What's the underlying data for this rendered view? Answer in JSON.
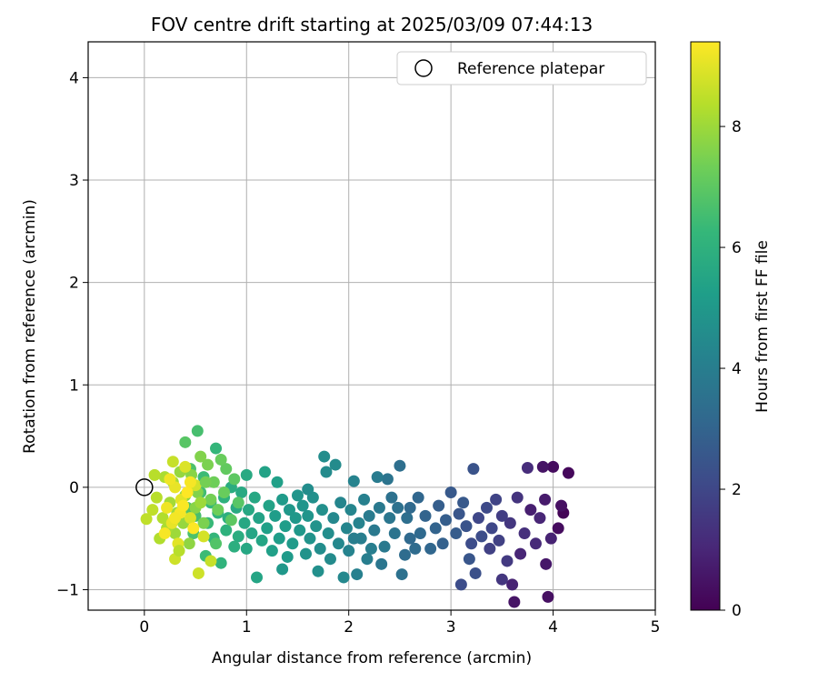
{
  "chart_data": {
    "type": "scatter",
    "title": "FOV centre drift starting at 2025/03/09 07:44:13",
    "xlabel": "Angular distance from reference (arcmin)",
    "ylabel": "Rotation from reference (arcmin)",
    "xlim": [
      -0.55,
      5.0
    ],
    "ylim": [
      -1.2,
      4.35
    ],
    "xticks": [
      0,
      1,
      2,
      3,
      4,
      5
    ],
    "yticks": [
      -1,
      0,
      1,
      2,
      3,
      4
    ],
    "grid": true,
    "legend": {
      "position": "top-right",
      "entries": [
        "Reference platepar"
      ]
    },
    "colorbar": {
      "label": "Hours from first FF file",
      "range": [
        0,
        9.4
      ],
      "ticks": [
        0,
        2,
        4,
        6,
        8
      ],
      "colormap": "viridis"
    },
    "reference_point": {
      "x": 0,
      "y": 0
    },
    "points": [
      [
        4.1,
        -0.25,
        0.1
      ],
      [
        4.0,
        0.2,
        0.3
      ],
      [
        3.9,
        0.2,
        0.5
      ],
      [
        4.15,
        0.14,
        0.2
      ],
      [
        3.95,
        -1.07,
        0.4
      ],
      [
        3.93,
        -0.75,
        0.6
      ],
      [
        4.05,
        -0.4,
        0.3
      ],
      [
        3.92,
        -0.12,
        0.7
      ],
      [
        3.98,
        -0.5,
        0.9
      ],
      [
        4.08,
        -0.18,
        0.4
      ],
      [
        3.87,
        -0.3,
        1.0
      ],
      [
        3.83,
        -0.55,
        1.1
      ],
      [
        3.78,
        -0.22,
        0.8
      ],
      [
        3.75,
        0.19,
        1.2
      ],
      [
        3.72,
        -0.45,
        1.3
      ],
      [
        3.68,
        -0.65,
        1.0
      ],
      [
        3.62,
        -1.12,
        0.5
      ],
      [
        3.6,
        -0.95,
        0.9
      ],
      [
        3.65,
        -0.1,
        1.4
      ],
      [
        3.58,
        -0.35,
        1.5
      ],
      [
        3.55,
        -0.72,
        1.6
      ],
      [
        3.5,
        -0.28,
        1.7
      ],
      [
        3.47,
        -0.52,
        1.8
      ],
      [
        3.44,
        -0.12,
        1.9
      ],
      [
        3.4,
        -0.4,
        2.0
      ],
      [
        3.38,
        -0.6,
        1.8
      ],
      [
        3.35,
        -0.2,
        2.1
      ],
      [
        3.3,
        -0.48,
        2.2
      ],
      [
        3.27,
        -0.3,
        2.0
      ],
      [
        3.24,
        -0.84,
        2.3
      ],
      [
        3.22,
        0.18,
        2.4
      ],
      [
        3.2,
        -0.55,
        2.2
      ],
      [
        3.18,
        -0.7,
        2.5
      ],
      [
        3.15,
        -0.38,
        2.4
      ],
      [
        3.12,
        -0.15,
        2.6
      ],
      [
        3.08,
        -0.26,
        2.5
      ],
      [
        3.05,
        -0.45,
        2.7
      ],
      [
        3.0,
        -0.05,
        2.6
      ],
      [
        2.95,
        -0.32,
        2.8
      ],
      [
        2.92,
        -0.55,
        2.9
      ],
      [
        2.88,
        -0.18,
        2.8
      ],
      [
        2.85,
        -0.4,
        3.0
      ],
      [
        2.8,
        -0.6,
        3.1
      ],
      [
        2.75,
        -0.28,
        3.0
      ],
      [
        2.7,
        -0.45,
        3.2
      ],
      [
        2.68,
        -0.1,
        3.1
      ],
      [
        2.65,
        -0.6,
        3.3
      ],
      [
        2.6,
        -0.5,
        3.2
      ],
      [
        2.57,
        -0.3,
        3.4
      ],
      [
        2.55,
        -0.66,
        3.3
      ],
      [
        2.52,
        -0.85,
        3.5
      ],
      [
        2.5,
        0.21,
        3.4
      ],
      [
        2.48,
        -0.2,
        3.5
      ],
      [
        2.45,
        -0.45,
        3.6
      ],
      [
        2.42,
        -0.1,
        3.5
      ],
      [
        2.4,
        -0.3,
        3.7
      ],
      [
        2.38,
        0.08,
        3.6
      ],
      [
        2.35,
        -0.58,
        3.8
      ],
      [
        2.32,
        -0.75,
        3.7
      ],
      [
        2.3,
        -0.2,
        3.8
      ],
      [
        2.28,
        0.1,
        3.9
      ],
      [
        2.25,
        -0.42,
        3.8
      ],
      [
        2.22,
        -0.6,
        4.0
      ],
      [
        2.2,
        -0.28,
        3.9
      ],
      [
        2.18,
        -0.7,
        4.0
      ],
      [
        2.15,
        -0.12,
        4.1
      ],
      [
        2.12,
        -0.5,
        4.0
      ],
      [
        2.1,
        -0.35,
        4.2
      ],
      [
        2.08,
        -0.85,
        4.1
      ],
      [
        2.05,
        0.06,
        4.2
      ],
      [
        2.02,
        -0.22,
        4.3
      ],
      [
        2.0,
        -0.62,
        4.2
      ],
      [
        1.98,
        -0.4,
        4.3
      ],
      [
        1.95,
        -0.88,
        4.4
      ],
      [
        1.92,
        -0.15,
        4.3
      ],
      [
        1.9,
        -0.55,
        4.4
      ],
      [
        1.87,
        0.22,
        4.5
      ],
      [
        1.85,
        -0.3,
        4.4
      ],
      [
        1.82,
        -0.7,
        4.5
      ],
      [
        1.8,
        -0.45,
        4.6
      ],
      [
        1.78,
        0.15,
        4.5
      ],
      [
        1.76,
        0.3,
        4.6
      ],
      [
        1.74,
        -0.22,
        4.7
      ],
      [
        1.72,
        -0.6,
        4.6
      ],
      [
        1.7,
        -0.82,
        4.7
      ],
      [
        1.68,
        -0.38,
        4.8
      ],
      [
        1.65,
        -0.1,
        4.7
      ],
      [
        1.62,
        -0.5,
        4.8
      ],
      [
        1.6,
        -0.28,
        4.9
      ],
      [
        1.58,
        -0.65,
        4.8
      ],
      [
        1.55,
        -0.18,
        4.9
      ],
      [
        1.52,
        -0.42,
        5.0
      ],
      [
        1.5,
        -0.08,
        4.9
      ],
      [
        1.48,
        -0.3,
        5.0
      ],
      [
        1.45,
        -0.55,
        5.1
      ],
      [
        1.42,
        -0.22,
        5.0
      ],
      [
        1.4,
        -0.68,
        5.1
      ],
      [
        1.38,
        -0.38,
        5.2
      ],
      [
        1.35,
        -0.12,
        5.1
      ],
      [
        1.32,
        -0.5,
        5.2
      ],
      [
        1.3,
        0.05,
        5.3
      ],
      [
        1.28,
        -0.28,
        5.2
      ],
      [
        1.25,
        -0.62,
        5.3
      ],
      [
        1.22,
        -0.18,
        5.4
      ],
      [
        1.2,
        -0.4,
        5.3
      ],
      [
        1.18,
        0.15,
        5.4
      ],
      [
        1.15,
        -0.52,
        5.5
      ],
      [
        1.12,
        -0.3,
        5.4
      ],
      [
        1.1,
        -0.88,
        5.5
      ],
      [
        1.08,
        -0.1,
        5.6
      ],
      [
        1.05,
        -0.45,
        5.5
      ],
      [
        1.02,
        -0.22,
        5.6
      ],
      [
        1.0,
        0.12,
        5.7
      ],
      [
        0.98,
        -0.35,
        5.6
      ],
      [
        0.95,
        -0.05,
        5.7
      ],
      [
        0.92,
        -0.48,
        5.8
      ],
      [
        0.9,
        -0.2,
        5.7
      ],
      [
        0.88,
        -0.58,
        5.9
      ],
      [
        0.85,
        0.0,
        5.8
      ],
      [
        0.82,
        -0.3,
        5.9
      ],
      [
        0.8,
        -0.42,
        6.0
      ],
      [
        0.78,
        -0.1,
        6.0
      ],
      [
        0.75,
        -0.74,
        6.1
      ],
      [
        0.72,
        -0.25,
        6.1
      ],
      [
        0.7,
        0.38,
        6.2
      ],
      [
        0.68,
        -0.5,
        6.2
      ],
      [
        0.65,
        -0.15,
        6.3
      ],
      [
        0.62,
        -0.35,
        6.3
      ],
      [
        0.6,
        -0.67,
        6.4
      ],
      [
        0.58,
        0.1,
        6.4
      ],
      [
        0.55,
        -0.05,
        6.5
      ],
      [
        0.52,
        0.55,
        6.6
      ],
      [
        0.5,
        -0.28,
        6.6
      ],
      [
        0.48,
        -0.45,
        6.7
      ],
      [
        0.45,
        0.18,
        6.7
      ],
      [
        0.42,
        -0.2,
        6.8
      ],
      [
        0.4,
        0.44,
        6.9
      ],
      [
        0.92,
        -0.15,
        6.9
      ],
      [
        0.88,
        0.08,
        7.0
      ],
      [
        0.85,
        -0.32,
        7.0
      ],
      [
        0.8,
        0.18,
        7.1
      ],
      [
        0.78,
        -0.05,
        7.2
      ],
      [
        0.75,
        0.27,
        7.2
      ],
      [
        0.72,
        -0.22,
        7.3
      ],
      [
        0.68,
        0.05,
        7.3
      ],
      [
        0.65,
        -0.12,
        7.4
      ],
      [
        0.62,
        0.22,
        7.5
      ],
      [
        0.58,
        -0.35,
        7.5
      ],
      [
        0.55,
        0.3,
        7.6
      ],
      [
        0.52,
        -0.05,
        7.6
      ],
      [
        0.5,
        -0.2,
        7.7
      ],
      [
        0.46,
        0.12,
        7.7
      ],
      [
        0.44,
        -0.55,
        7.8
      ],
      [
        0.4,
        -0.08,
        7.8
      ],
      [
        0.38,
        -0.35,
        7.9
      ],
      [
        0.35,
        0.15,
        7.9
      ],
      [
        0.32,
        -0.25,
        8.0
      ],
      [
        0.3,
        -0.45,
        8.0
      ],
      [
        0.28,
        0.05,
        8.1
      ],
      [
        0.25,
        -0.15,
        8.1
      ],
      [
        0.22,
        -0.4,
        8.2
      ],
      [
        0.2,
        0.1,
        8.2
      ],
      [
        0.18,
        -0.3,
        8.3
      ],
      [
        0.15,
        -0.5,
        8.3
      ],
      [
        0.12,
        -0.1,
        8.4
      ],
      [
        0.1,
        0.12,
        8.4
      ],
      [
        0.08,
        -0.22,
        8.5
      ],
      [
        0.02,
        -0.31,
        8.5
      ],
      [
        0.65,
        -0.72,
        8.6
      ],
      [
        0.53,
        -0.84,
        8.7
      ],
      [
        0.3,
        -0.7,
        8.7
      ],
      [
        0.58,
        -0.48,
        8.8
      ],
      [
        0.5,
        0.02,
        8.8
      ],
      [
        0.45,
        -0.3,
        8.9
      ],
      [
        0.4,
        0.2,
        8.9
      ],
      [
        0.36,
        -0.12,
        9.0
      ],
      [
        0.33,
        -0.55,
        9.0
      ],
      [
        0.3,
        0.0,
        9.1
      ],
      [
        0.27,
        -0.35,
        9.1
      ],
      [
        0.25,
        0.08,
        9.2
      ],
      [
        0.22,
        -0.2,
        9.2
      ],
      [
        0.2,
        -0.45,
        9.3
      ],
      [
        0.35,
        -0.25,
        9.3
      ],
      [
        0.42,
        -0.05,
        9.4
      ],
      [
        0.48,
        -0.4,
        9.4
      ],
      [
        0.38,
        -0.18,
        9.35
      ],
      [
        0.3,
        -0.3,
        9.25
      ],
      [
        0.45,
        0.05,
        9.3
      ],
      [
        0.28,
        0.25,
        8.6
      ],
      [
        0.34,
        -0.62,
        8.4
      ],
      [
        0.55,
        -0.15,
        8.0
      ],
      [
        0.6,
        0.05,
        7.4
      ],
      [
        0.7,
        -0.55,
        6.8
      ],
      [
        1.0,
        -0.6,
        5.6
      ],
      [
        1.35,
        -0.8,
        5.0
      ],
      [
        1.6,
        -0.02,
        4.6
      ],
      [
        2.05,
        -0.5,
        4.0
      ],
      [
        2.6,
        -0.2,
        3.2
      ],
      [
        3.1,
        -0.95,
        2.2
      ],
      [
        3.5,
        -0.9,
        1.5
      ]
    ]
  }
}
